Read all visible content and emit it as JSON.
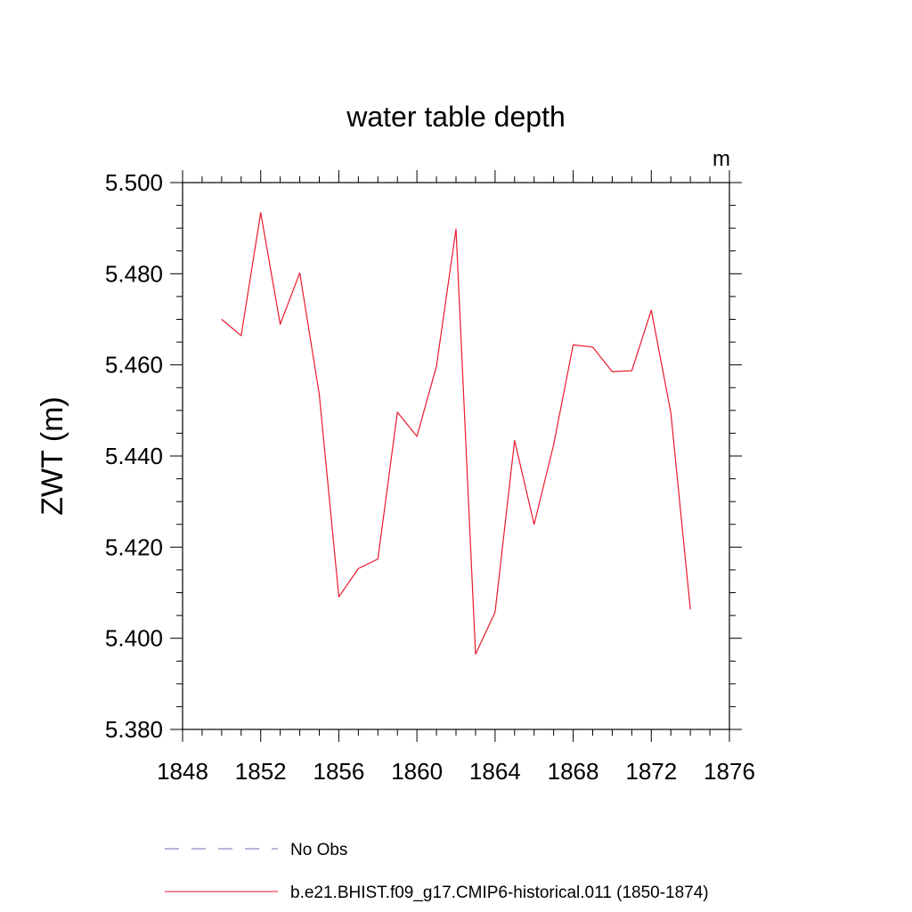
{
  "chart_data": {
    "type": "line",
    "title": "water table depth",
    "units_label": "m",
    "xlabel": "",
    "ylabel": "ZWT  (m)",
    "xlim": [
      1848,
      1876
    ],
    "ylim": [
      5.38,
      5.5
    ],
    "x_ticks": [
      1848,
      1852,
      1856,
      1860,
      1864,
      1868,
      1872,
      1876
    ],
    "x_tick_labels": [
      "1848",
      "1852",
      "1856",
      "1860",
      "1864",
      "1868",
      "1872",
      "1876"
    ],
    "y_ticks": [
      5.38,
      5.4,
      5.42,
      5.44,
      5.46,
      5.48,
      5.5
    ],
    "y_tick_labels": [
      "5.380",
      "5.400",
      "5.420",
      "5.440",
      "5.460",
      "5.480",
      "5.500"
    ],
    "grid": false,
    "legend_position": "bottom",
    "series": [
      {
        "name": "b.e21.BHIST.f09_g17.CMIP6-historical.011 (1850-1874)",
        "color": "#e8192c",
        "style": "solid",
        "x": [
          1850,
          1851,
          1852,
          1853,
          1854,
          1855,
          1856,
          1857,
          1858,
          1859,
          1860,
          1861,
          1862,
          1863,
          1864,
          1865,
          1866,
          1867,
          1868,
          1869,
          1870,
          1871,
          1872,
          1873,
          1874
        ],
        "y": [
          5.47,
          5.4664,
          5.4934,
          5.4689,
          5.4802,
          5.4535,
          5.4091,
          5.4153,
          5.4174,
          5.4496,
          5.4443,
          5.4597,
          5.4898,
          5.3965,
          5.4057,
          5.4434,
          5.425,
          5.4425,
          5.4644,
          5.4639,
          5.4585,
          5.4587,
          5.472,
          5.4495,
          5.4063
        ]
      }
    ],
    "legend": [
      {
        "label": "No Obs",
        "color": "#6b6bb3",
        "style": "dashed"
      },
      {
        "label": "b.e21.BHIST.f09_g17.CMIP6-historical.011 (1850-1874)",
        "color": "#e8192c",
        "style": "solid"
      }
    ]
  }
}
